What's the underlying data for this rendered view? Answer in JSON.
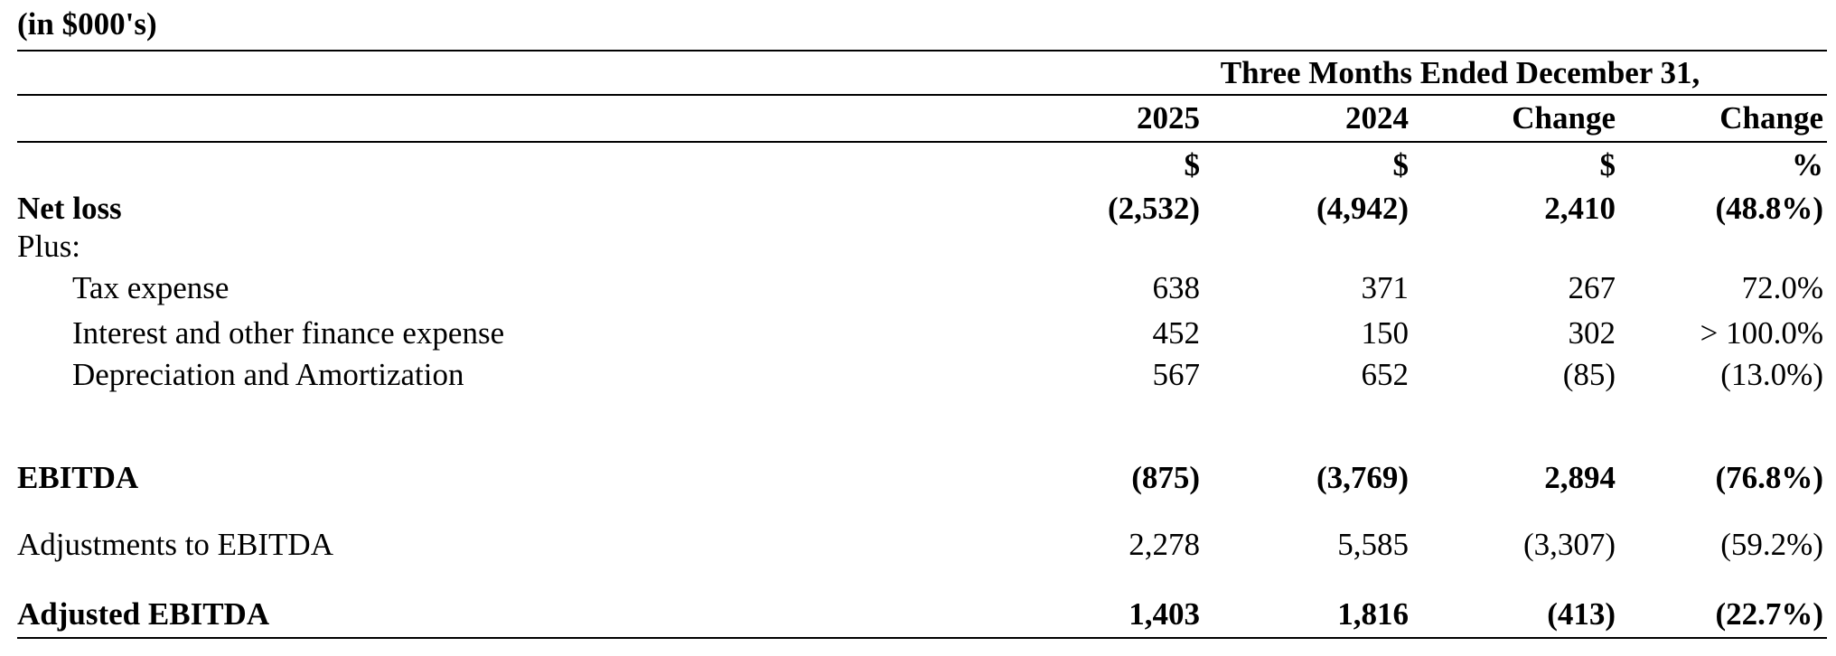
{
  "header": {
    "unit_note": "(in $000's)"
  },
  "table": {
    "group_header": "Three Months Ended December 31,",
    "columns": [
      "2025",
      "2024",
      "Change",
      "Change"
    ],
    "units": [
      "$",
      "$",
      "$",
      "%"
    ],
    "rows": [
      [
        "Net loss",
        "(2,532)",
        "(4,942)",
        "2,410",
        "(48.8%)"
      ],
      [
        "Plus:"
      ],
      [
        "Tax expense",
        "638",
        "371",
        "267",
        "72.0%"
      ],
      [
        "Interest and other finance expense",
        "452",
        "150",
        "302",
        "> 100.0%"
      ],
      [
        "Depreciation and Amortization",
        "567",
        "652",
        "(85)",
        "(13.0%)"
      ],
      [
        "EBITDA",
        "(875)",
        "(3,769)",
        "2,894",
        "(76.8%)"
      ],
      [
        "Adjustments to EBITDA",
        "2,278",
        "5,585",
        "(3,307)",
        "(59.2%)"
      ],
      [
        "Adjusted EBITDA",
        "1,403",
        "1,816",
        "(413)",
        "(22.7%)"
      ]
    ]
  }
}
